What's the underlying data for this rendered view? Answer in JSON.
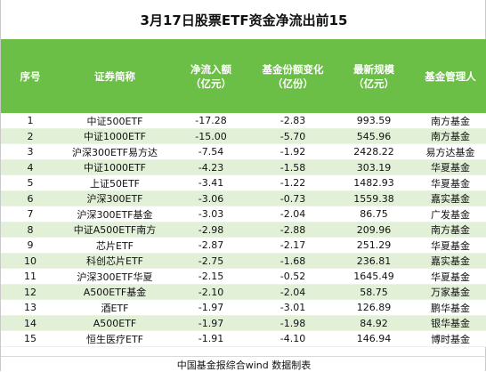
{
  "title": "3月17日股票ETF资金净流出前15",
  "headers": {
    "seq": "序号",
    "name": "证券简称",
    "flow_line1": "净流入额",
    "flow_line2": "（亿元）",
    "change_line1": "基金份额变化",
    "change_line2": "（亿份）",
    "size_line1": "最新规模",
    "size_line2": "（亿元）",
    "manager": "基金管理人"
  },
  "rows": [
    {
      "seq": "1",
      "name": "中证500ETF",
      "net_inflow": "-17.28",
      "share_change": "-2.83",
      "latest_size": "993.59",
      "manager": "南方基金"
    },
    {
      "seq": "2",
      "name": "中证1000ETF",
      "net_inflow": "-15.00",
      "share_change": "-5.70",
      "latest_size": "545.96",
      "manager": "南方基金"
    },
    {
      "seq": "3",
      "name": "沪深300ETF易方达",
      "net_inflow": "-7.54",
      "share_change": "-1.92",
      "latest_size": "2428.22",
      "manager": "易方达基金"
    },
    {
      "seq": "4",
      "name": "中证1000ETF",
      "net_inflow": "-4.23",
      "share_change": "-1.58",
      "latest_size": "303.19",
      "manager": "华夏基金"
    },
    {
      "seq": "5",
      "name": "上证50ETF",
      "net_inflow": "-3.41",
      "share_change": "-1.22",
      "latest_size": "1482.93",
      "manager": "华夏基金"
    },
    {
      "seq": "6",
      "name": "沪深300ETF",
      "net_inflow": "-3.06",
      "share_change": "-0.73",
      "latest_size": "1559.38",
      "manager": "嘉实基金"
    },
    {
      "seq": "7",
      "name": "沪深300ETF基金",
      "net_inflow": "-3.03",
      "share_change": "-2.04",
      "latest_size": "86.75",
      "manager": "广发基金"
    },
    {
      "seq": "8",
      "name": "中证A500ETF南方",
      "net_inflow": "-2.98",
      "share_change": "-2.88",
      "latest_size": "209.96",
      "manager": "南方基金"
    },
    {
      "seq": "9",
      "name": "芯片ETF",
      "net_inflow": "-2.87",
      "share_change": "-2.17",
      "latest_size": "251.29",
      "manager": "华夏基金"
    },
    {
      "seq": "10",
      "name": "科创芯片ETF",
      "net_inflow": "-2.75",
      "share_change": "-1.68",
      "latest_size": "236.81",
      "manager": "嘉实基金"
    },
    {
      "seq": "11",
      "name": "沪深300ETF华夏",
      "net_inflow": "-2.15",
      "share_change": "-0.52",
      "latest_size": "1645.49",
      "manager": "华夏基金"
    },
    {
      "seq": "12",
      "name": "A500ETF基金",
      "net_inflow": "-2.10",
      "share_change": "-2.04",
      "latest_size": "58.75",
      "manager": "万家基金"
    },
    {
      "seq": "13",
      "name": "酒ETF",
      "net_inflow": "-1.97",
      "share_change": "-3.01",
      "latest_size": "126.89",
      "manager": "鹏华基金"
    },
    {
      "seq": "14",
      "name": "A500ETF",
      "net_inflow": "-1.97",
      "share_change": "-1.98",
      "latest_size": "84.92",
      "manager": "银华基金"
    },
    {
      "seq": "15",
      "name": "恒生医疗ETF",
      "net_inflow": "-1.91",
      "share_change": "-4.10",
      "latest_size": "146.94",
      "manager": "博时基金"
    }
  ],
  "footer": "中国基金报综合wind 数据制表",
  "colors": {
    "header_bg": "#6cbf46",
    "stripe_bg": "#e2f0d8",
    "header_text": "#ffffff"
  }
}
